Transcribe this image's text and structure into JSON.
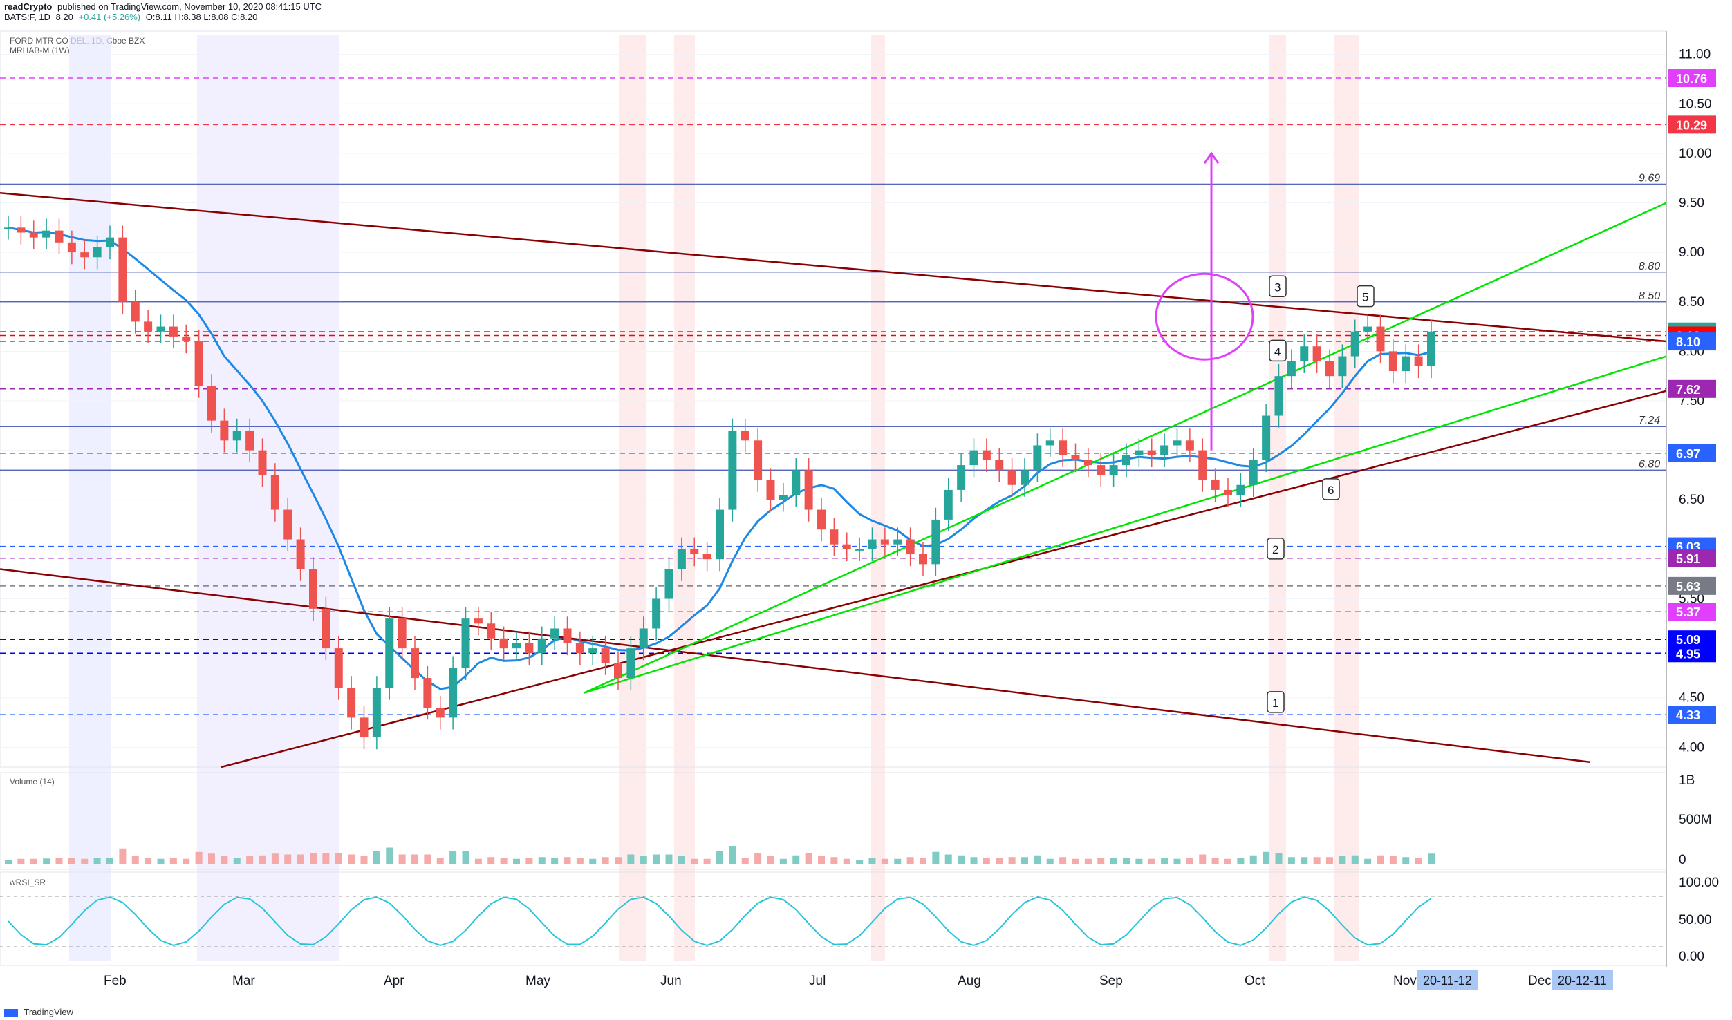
{
  "header": {
    "publisher": "readCrypto",
    "published_text": "published on TradingView.com, November 10, 2020 08:41:15 UTC",
    "ticker_line": "BATS:F, 1D",
    "last": "8.20",
    "change": "+0.41 (+5.26%)",
    "ohlc": "O:8.11 H:8.38 L:8.08 C:8.20"
  },
  "legend": {
    "symbol_name": "FORD MTR CO DEL, 1D, Cboe BZX",
    "indicator": "MRHAB-M (1W)",
    "volume_pane": "Volume (14)",
    "rsi_pane": "wRSI_SR"
  },
  "footer": {
    "brand": "TradingView"
  },
  "colors": {
    "up": "#26a69a",
    "down": "#ef5350",
    "trendline": "#8b0000",
    "green_line": "#00e600",
    "blue_line": "#3f51b5",
    "magenta": "#e040fb"
  },
  "chart_data": {
    "type": "candlestick",
    "x_axis_labels": [
      "Feb",
      "Mar",
      "Apr",
      "May",
      "Jun",
      "Jul",
      "Aug",
      "Sep",
      "Oct",
      "Nov",
      "Dec"
    ],
    "x_axis_date_badges": [
      "20-11-12",
      "20-12-11"
    ],
    "price_axis_ticks": [
      "11.00",
      "10.50",
      "10.00",
      "9.50",
      "9.00",
      "8.50",
      "8.00",
      "7.50",
      "7.00",
      "6.50",
      "6.00",
      "5.50",
      "5.00",
      "4.50",
      "4.00"
    ],
    "price_range": [
      3.8,
      11.2
    ],
    "price_tags": [
      {
        "label": "10.76",
        "value": 10.76,
        "color": "#e040fb"
      },
      {
        "label": "10.29",
        "value": 10.29,
        "color": "#f23645"
      },
      {
        "label": "8.20",
        "value": 8.2,
        "color": "#26a69a"
      },
      {
        "label": "8.16",
        "value": 8.16,
        "color": "#ff0000"
      },
      {
        "label": "8.10",
        "value": 8.1,
        "color": "#2962ff"
      },
      {
        "label": "7.62",
        "value": 7.62,
        "color": "#9c27b0"
      },
      {
        "label": "6.97",
        "value": 6.97,
        "color": "#2962ff"
      },
      {
        "label": "6.03",
        "value": 6.03,
        "color": "#2962ff"
      },
      {
        "label": "5.91",
        "value": 5.91,
        "color": "#9c27b0"
      },
      {
        "label": "5.63",
        "value": 5.63,
        "color": "#787b86"
      },
      {
        "label": "5.37",
        "value": 5.37,
        "color": "#e040fb"
      },
      {
        "label": "5.09",
        "value": 5.09,
        "color": "#0000ff"
      },
      {
        "label": "4.95",
        "value": 4.95,
        "color": "#0000ff"
      },
      {
        "label": "4.33",
        "value": 4.33,
        "color": "#2962ff"
      }
    ],
    "level_labels": [
      {
        "label": "9.69",
        "value": 9.69
      },
      {
        "label": "8.80",
        "value": 8.8
      },
      {
        "label": "8.50",
        "value": 8.5
      },
      {
        "label": "7.24",
        "value": 7.24
      },
      {
        "label": "6.80",
        "value": 6.8
      }
    ],
    "wave_labels": [
      "1",
      "2",
      "3",
      "4",
      "5",
      "6"
    ],
    "volume_axis_ticks": [
      "1B",
      "500M",
      "0"
    ],
    "rsi_axis_ticks": [
      "100.00",
      "50.00",
      "0.00"
    ],
    "close_series": [
      9.25,
      9.2,
      9.15,
      9.22,
      9.1,
      9.0,
      8.95,
      9.05,
      9.15,
      8.5,
      8.3,
      8.2,
      8.25,
      8.15,
      8.1,
      7.65,
      7.3,
      7.1,
      7.2,
      7.0,
      6.75,
      6.4,
      6.1,
      5.8,
      5.4,
      5.0,
      4.6,
      4.3,
      4.1,
      4.6,
      5.3,
      5.0,
      4.7,
      4.4,
      4.3,
      4.8,
      5.3,
      5.25,
      5.1,
      5.0,
      5.05,
      4.95,
      5.1,
      5.2,
      5.05,
      4.95,
      5.0,
      4.85,
      4.7,
      5.0,
      5.2,
      5.5,
      5.8,
      6.0,
      5.95,
      5.9,
      6.4,
      7.2,
      7.1,
      6.7,
      6.5,
      6.55,
      6.8,
      6.4,
      6.2,
      6.05,
      6.0,
      6.0,
      6.1,
      6.05,
      6.1,
      5.95,
      5.85,
      6.3,
      6.6,
      6.85,
      7.0,
      6.9,
      6.8,
      6.65,
      6.8,
      7.05,
      7.1,
      6.95,
      6.9,
      6.85,
      6.75,
      6.85,
      6.95,
      7.0,
      6.95,
      7.05,
      7.1,
      7.0,
      6.7,
      6.6,
      6.55,
      6.65,
      6.9,
      7.35,
      7.75,
      7.9,
      8.05,
      7.9,
      7.75,
      7.95,
      8.2,
      8.25,
      8.0,
      7.8,
      7.95,
      7.85,
      8.2
    ]
  }
}
